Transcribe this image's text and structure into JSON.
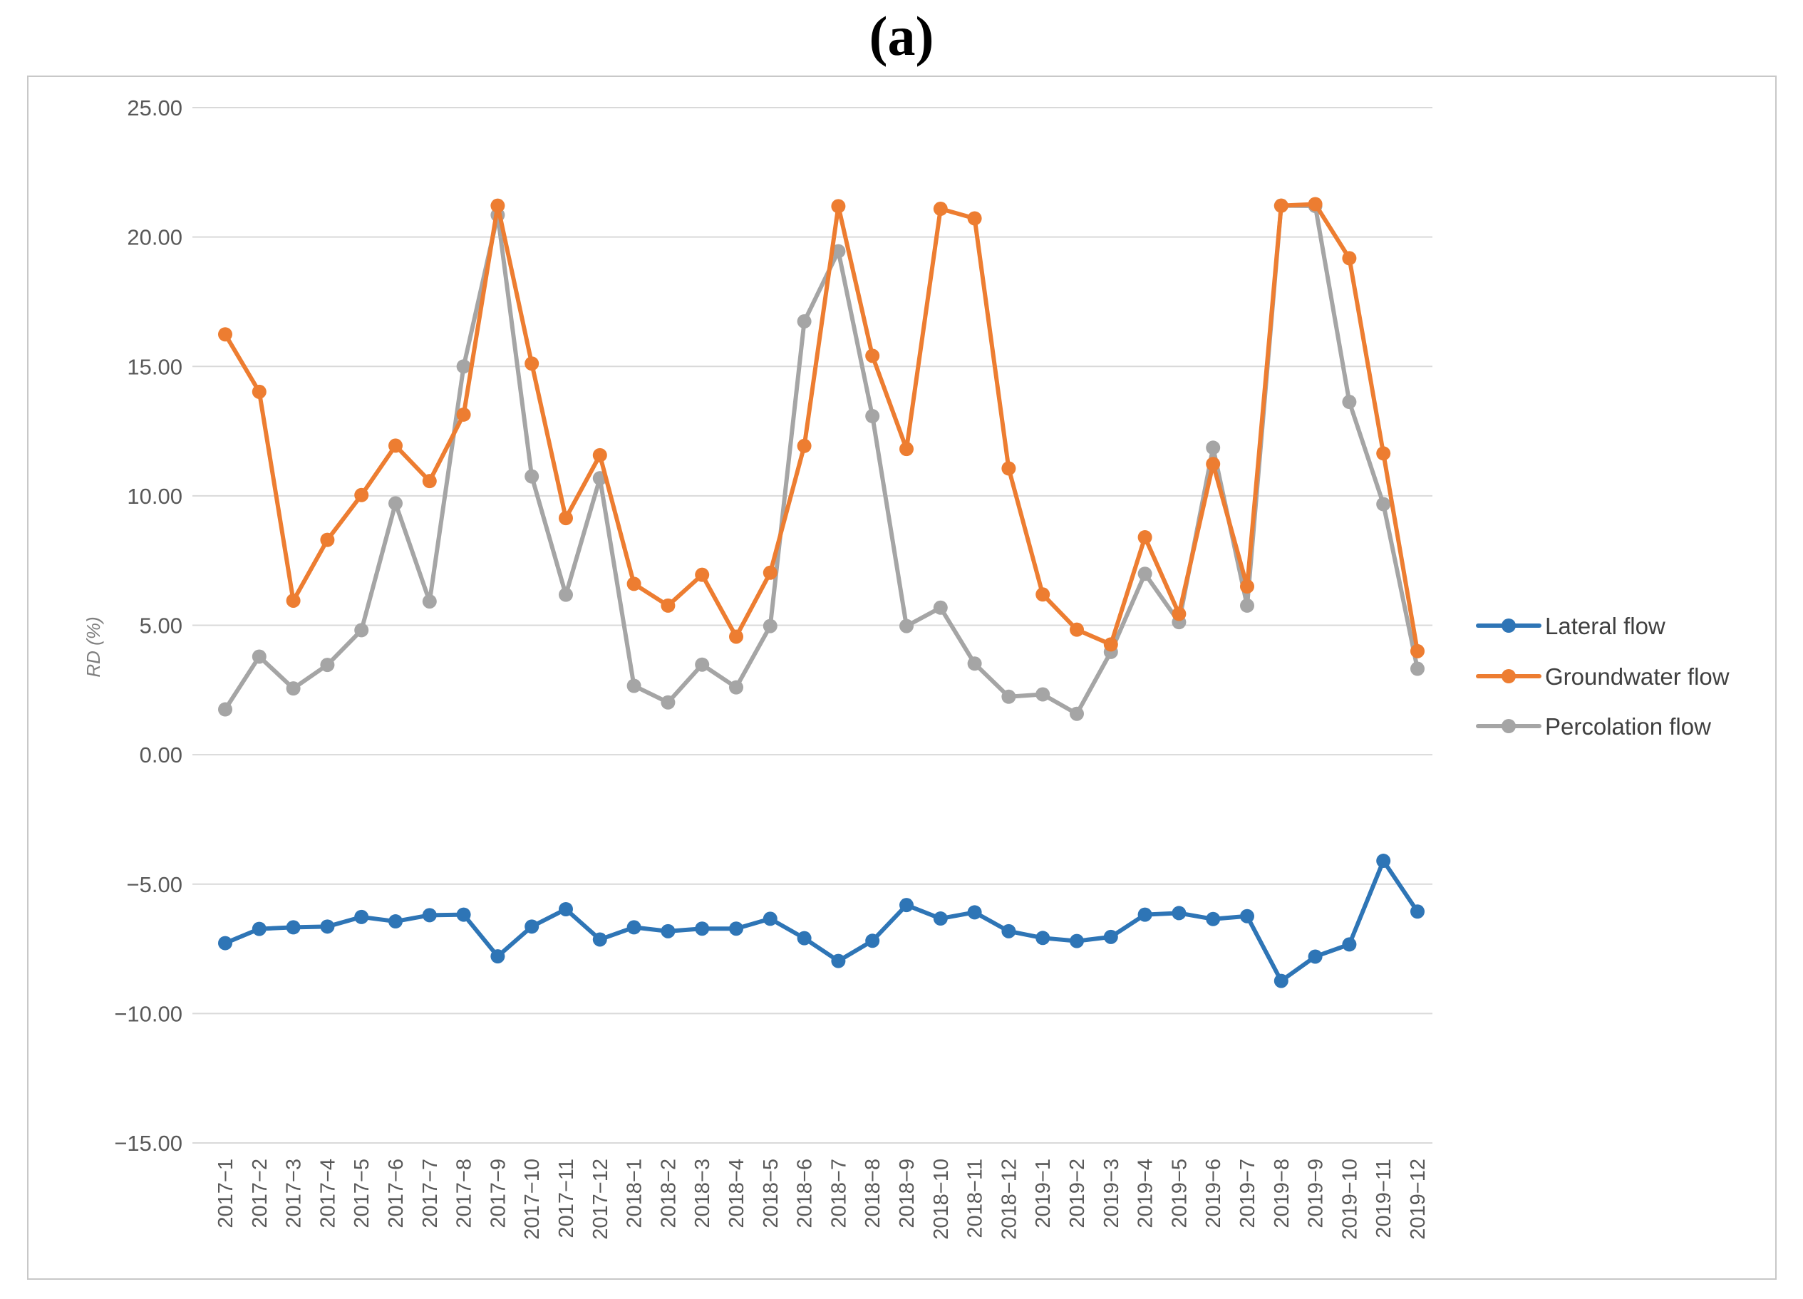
{
  "chart_data": {
    "type": "line",
    "title": "(a)",
    "xlabel": "",
    "ylabel": "RD (%)",
    "ylim": [
      -15,
      25
    ],
    "yticks": [
      25,
      20,
      15,
      10,
      5,
      0,
      -5,
      -10,
      -15
    ],
    "ytick_labels": [
      "25.00",
      "20.00",
      "15.00",
      "10.00",
      "5.00",
      "0.00",
      "−5.00",
      "−10.00",
      "−15.00"
    ],
    "grid": true,
    "legend_position": "right",
    "categories": [
      "2017−1",
      "2017−2",
      "2017−3",
      "2017−4",
      "2017−5",
      "2017−6",
      "2017−7",
      "2017−8",
      "2017−9",
      "2017−10",
      "2017−11",
      "2017−12",
      "2018−1",
      "2018−2",
      "2018−3",
      "2018−4",
      "2018−5",
      "2018−6",
      "2018−7",
      "2018−8",
      "2018−9",
      "2018−10",
      "2018−11",
      "2018−12",
      "2019−1",
      "2019−2",
      "2019−3",
      "2019−4",
      "2019−5",
      "2019−6",
      "2019−7",
      "2019−8",
      "2019−9",
      "2019−10",
      "2019−11",
      "2019−12"
    ],
    "series": [
      {
        "name": "Lateral flow",
        "color": "#2e75b6",
        "values": [
          -7.28,
          -6.73,
          -6.67,
          -6.64,
          -6.27,
          -6.44,
          -6.2,
          -6.18,
          -7.79,
          -6.64,
          -5.97,
          -7.14,
          -6.67,
          -6.82,
          -6.72,
          -6.72,
          -6.34,
          -7.09,
          -7.97,
          -7.19,
          -5.81,
          -6.33,
          -6.09,
          -6.82,
          -7.08,
          -7.2,
          -7.04,
          -6.18,
          -6.12,
          -6.35,
          -6.24,
          -8.74,
          -7.8,
          -7.33,
          -4.1,
          -6.06
        ]
      },
      {
        "name": "Groundwater flow",
        "color": "#ed7d31",
        "values": [
          16.24,
          14.02,
          5.95,
          8.3,
          10.03,
          11.94,
          10.57,
          13.14,
          21.21,
          15.11,
          9.14,
          11.57,
          6.6,
          5.76,
          6.95,
          4.56,
          7.03,
          11.93,
          21.19,
          15.41,
          11.81,
          21.09,
          20.72,
          11.06,
          6.19,
          4.83,
          4.26,
          8.4,
          5.44,
          11.23,
          6.5,
          21.21,
          21.27,
          19.18,
          11.64,
          4.0
        ]
      },
      {
        "name": "Percolation flow",
        "color": "#a5a5a5",
        "values": [
          1.75,
          3.79,
          2.56,
          3.47,
          4.81,
          9.71,
          5.92,
          15.0,
          20.85,
          10.75,
          6.18,
          10.68,
          2.66,
          2.02,
          3.48,
          2.6,
          4.97,
          16.74,
          19.45,
          13.08,
          4.97,
          5.68,
          3.52,
          2.24,
          2.33,
          1.58,
          3.97,
          6.99,
          5.12,
          11.86,
          5.76,
          21.21,
          21.2,
          13.63,
          9.68,
          3.32
        ]
      }
    ]
  }
}
